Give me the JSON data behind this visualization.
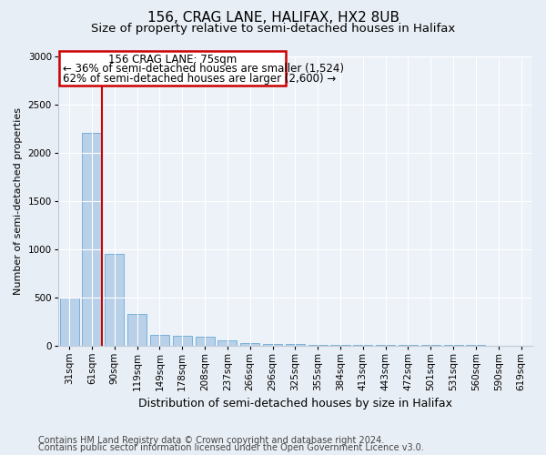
{
  "title1": "156, CRAG LANE, HALIFAX, HX2 8UB",
  "title2": "Size of property relative to semi-detached houses in Halifax",
  "xlabel": "Distribution of semi-detached houses by size in Halifax",
  "ylabel": "Number of semi-detached properties",
  "footer1": "Contains HM Land Registry data © Crown copyright and database right 2024.",
  "footer2": "Contains public sector information licensed under the Open Government Licence v3.0.",
  "categories": [
    "31sqm",
    "61sqm",
    "90sqm",
    "119sqm",
    "149sqm",
    "178sqm",
    "208sqm",
    "237sqm",
    "266sqm",
    "296sqm",
    "325sqm",
    "355sqm",
    "384sqm",
    "413sqm",
    "443sqm",
    "472sqm",
    "501sqm",
    "531sqm",
    "560sqm",
    "590sqm",
    "619sqm"
  ],
  "values": [
    500,
    2200,
    950,
    325,
    110,
    100,
    90,
    50,
    25,
    15,
    15,
    10,
    3,
    3,
    3,
    2,
    1,
    1,
    1,
    0,
    0
  ],
  "bar_color": "#b8d0e8",
  "bar_edge_color": "#6aaad4",
  "annotation_box_edge_color": "#cc0000",
  "annotation_box_face_color": "#ffffff",
  "vline_color": "#cc0000",
  "vline_x_index": 1,
  "vline_x_offset": 0.43,
  "annotation_title": "156 CRAG LANE: 75sqm",
  "annotation_line1": "← 36% of semi-detached houses are smaller (1,524)",
  "annotation_line2": "62% of semi-detached houses are larger (2,600) →",
  "ylim": [
    0,
    3000
  ],
  "yticks": [
    0,
    500,
    1000,
    1500,
    2000,
    2500,
    3000
  ],
  "bg_color": "#e8eef5",
  "plot_bg_color": "#edf2f9",
  "title1_fontsize": 11,
  "title2_fontsize": 9.5,
  "xlabel_fontsize": 9,
  "ylabel_fontsize": 8,
  "tick_fontsize": 7.5,
  "annotation_fontsize": 8.5,
  "footer_fontsize": 7
}
